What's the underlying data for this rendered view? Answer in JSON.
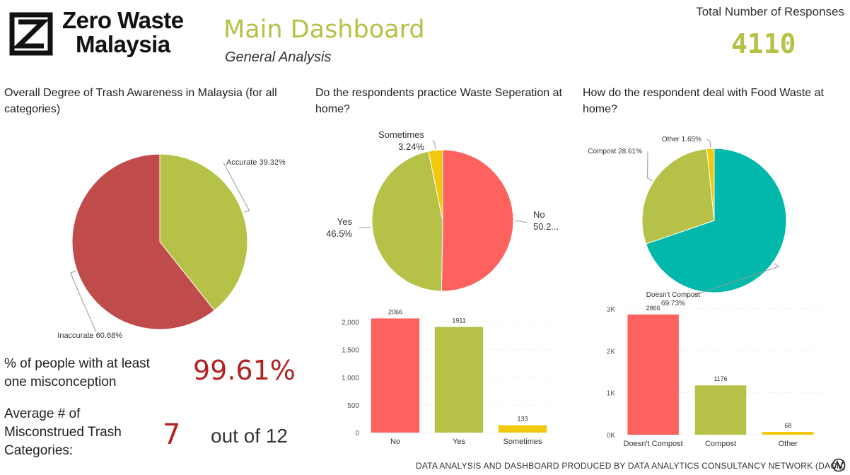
{
  "brand": {
    "line1": "Zero Waste",
    "line2": "Malaysia"
  },
  "header": {
    "title": "Main Dashboard",
    "subtitle": "General Analysis"
  },
  "responses": {
    "label": "Total Number of Responses",
    "value": "4110"
  },
  "colors": {
    "accent": "#b5c147",
    "red_dark": "#bf4c4a",
    "red": "#fd625e",
    "green": "#b5c147",
    "yellow": "#f2c80f",
    "teal": "#01b8aa",
    "kpi": "#b22222"
  },
  "chart_data": [
    {
      "type": "pie",
      "title": "Overall Degree of Trash Awareness in Malaysia (for all categories)",
      "slices": [
        {
          "label": "Accurate",
          "value": 39.32,
          "display": "Accurate 39.32%",
          "color": "#b5c147"
        },
        {
          "label": "Inaccurate",
          "value": 60.68,
          "display": "Inaccurate 60.68%",
          "color": "#bf4c4a"
        }
      ]
    },
    {
      "type": "pie",
      "title": "Do the respondents practice Waste Seperation at home?",
      "slices": [
        {
          "label": "No",
          "value": 50.26,
          "display": "50.2...",
          "color": "#fd625e"
        },
        {
          "label": "Yes",
          "value": 46.5,
          "display": "46.5%",
          "color": "#b5c147"
        },
        {
          "label": "Sometimes",
          "value": 3.24,
          "display": "3.24%",
          "color": "#f2c80f"
        }
      ]
    },
    {
      "type": "pie",
      "title": "How do the respondent deal with Food Waste at home?",
      "slices": [
        {
          "label": "Doesn't Compost",
          "value": 69.73,
          "display": "69.73%",
          "color": "#01b8aa"
        },
        {
          "label": "Compost",
          "value": 28.61,
          "display": "Compost 28.61%",
          "color": "#b5c147"
        },
        {
          "label": "Other",
          "value": 1.65,
          "display": "Other 1.65%",
          "color": "#f2c80f"
        }
      ]
    },
    {
      "type": "bar",
      "categories": [
        "No",
        "Yes",
        "Sometimes"
      ],
      "values": [
        2066,
        1911,
        133
      ],
      "colors": [
        "#fd625e",
        "#b5c147",
        "#f2c80f"
      ],
      "ylim": [
        0,
        2200
      ],
      "yticks": [
        0,
        500,
        1000,
        1500,
        2000
      ],
      "ytick_labels": [
        "0",
        "500",
        "1,000",
        "1,500",
        "2,000"
      ],
      "grid": true
    },
    {
      "type": "bar",
      "categories": [
        "Doesn't Compost",
        "Compost",
        "Other"
      ],
      "values": [
        2866,
        1176,
        68
      ],
      "colors": [
        "#fd625e",
        "#b5c147",
        "#f2c80f"
      ],
      "ylim": [
        0,
        3000
      ],
      "yticks": [
        0,
        1000,
        2000,
        3000
      ],
      "ytick_labels": [
        "0K",
        "1K",
        "2K",
        "3K"
      ],
      "grid": true
    }
  ],
  "kpis": {
    "misconception_label_1": "% of people with at least",
    "misconception_label_2": "one misconception",
    "misconception_value": "99.61%",
    "avg_label_1": "Average # of",
    "avg_label_2": "Misconstrued Trash",
    "avg_label_3": "Categories:",
    "avg_value": "7",
    "avg_suffix": "out of 12"
  },
  "footer": {
    "text": "DATA ANALYSIS AND DASHBOARD PRODUCED BY DATA ANALYTICS CONSULTANCY NETWORK (DACN)"
  }
}
